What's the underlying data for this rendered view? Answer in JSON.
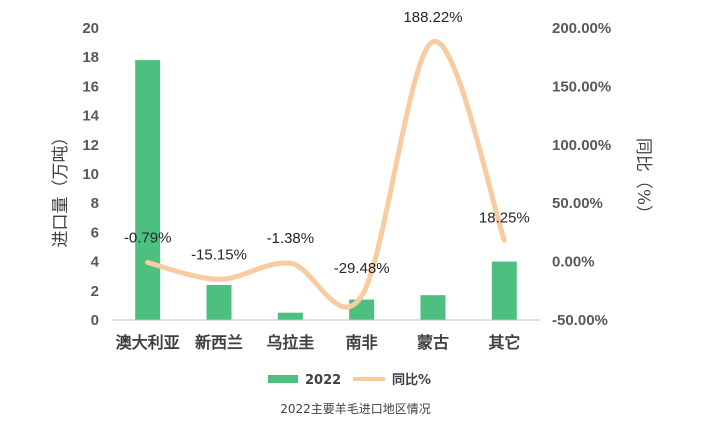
{
  "caption": "2022主要羊毛进口地区情况",
  "colors": {
    "bar": "#4dbf7f",
    "line": "#f8cba0",
    "axis": "#bfbfbf"
  },
  "chart_data": {
    "type": "bar",
    "categories": [
      "澳大利亚",
      "新西兰",
      "乌拉圭",
      "南非",
      "蒙古",
      "其它"
    ],
    "series": [
      {
        "name": "2022",
        "type": "bar",
        "axis": "left",
        "values": [
          17.8,
          2.4,
          0.5,
          1.4,
          1.7,
          4.0
        ]
      },
      {
        "name": "同比%",
        "type": "line",
        "axis": "right",
        "values": [
          -0.79,
          -15.15,
          -1.38,
          -29.48,
          188.22,
          18.25
        ],
        "labels": [
          "-0.79%",
          "-15.15%",
          "-1.38%",
          "-29.48%",
          "188.22%",
          "18.25%"
        ]
      }
    ],
    "ylabel": "进口量（万吨）",
    "y2label": "同比（%）",
    "ylim": [
      0,
      20
    ],
    "y_ticks": [
      "0",
      "2",
      "4",
      "6",
      "8",
      "10",
      "12",
      "14",
      "16",
      "18",
      "20"
    ],
    "y2lim": [
      -50,
      200
    ],
    "y2_ticks": [
      "-50.00%",
      "0.00%",
      "50.00%",
      "100.00%",
      "150.00%",
      "200.00%"
    ],
    "grid": false,
    "legend": "bottom"
  }
}
